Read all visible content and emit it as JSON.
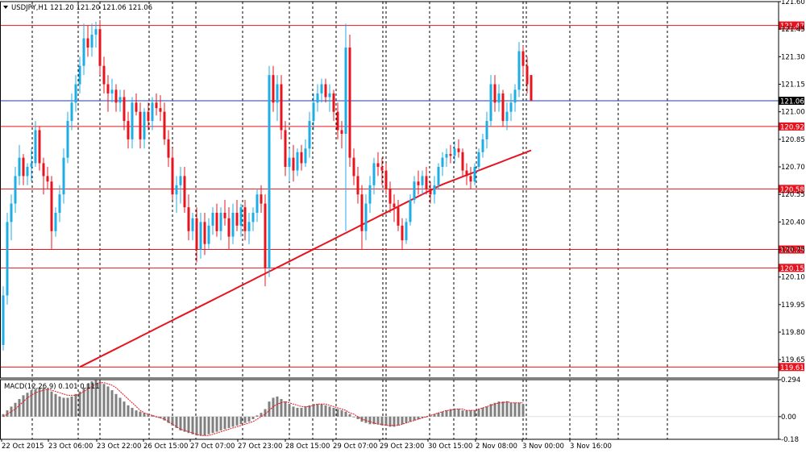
{
  "chart_data": [
    {
      "type": "candlestick",
      "title": "USDJPY,H1  121.20 121.20 121.06 121.06",
      "menu_icon": "triangle-down-icon",
      "ylim": [
        119.55,
        121.6
      ],
      "y_ticks": [
        "121.60",
        "121.45",
        "121.30",
        "121.15",
        "121.00",
        "120.85",
        "120.70",
        "120.55",
        "120.40",
        "120.25",
        "120.10",
        "119.95",
        "119.80",
        "119.65"
      ],
      "x_ticks": [
        "22 Oct 2015",
        "23 Oct 06:00",
        "23 Oct 22:00",
        "26 Oct 15:00",
        "27 Oct 07:00",
        "27 Oct 23:00",
        "28 Oct 15:00",
        "29 Oct 07:00",
        "29 Oct 23:00",
        "30 Oct 15:00",
        "2 Nov 08:00",
        "3 Nov 00:00",
        "3 Nov 16:00"
      ],
      "grid": "vertical dashed",
      "colors": {
        "bull": "#1eaee6",
        "bear": "#e6141e",
        "ma": "#e6141e",
        "hline": "#e6141e",
        "current": "#1f3fa0",
        "grid": "#000000"
      },
      "price_labels": [
        {
          "value": 121.47,
          "text": "121.47",
          "kind": "level"
        },
        {
          "value": 121.06,
          "text": "121.06",
          "kind": "current"
        },
        {
          "value": 120.92,
          "text": "120.92",
          "kind": "level"
        },
        {
          "value": 120.58,
          "text": "120.58",
          "kind": "level"
        },
        {
          "value": 120.25,
          "text": "120.25",
          "kind": "level"
        },
        {
          "value": 120.15,
          "text": "120.15",
          "kind": "level"
        },
        {
          "value": 119.61,
          "text": "119.61",
          "kind": "level"
        }
      ],
      "moving_average": {
        "start": 119.61,
        "end": 120.79,
        "shape": "rising, steady then flattening"
      },
      "candles": [
        [
          119.73,
          120.05,
          119.7,
          120.0
        ],
        [
          120.0,
          120.45,
          119.95,
          120.4
        ],
        [
          120.4,
          120.55,
          120.3,
          120.5
        ],
        [
          120.5,
          120.7,
          120.45,
          120.65
        ],
        [
          120.65,
          120.82,
          120.6,
          120.75
        ],
        [
          120.75,
          120.77,
          120.6,
          120.65
        ],
        [
          120.65,
          120.72,
          120.6,
          120.7
        ],
        [
          120.7,
          120.8,
          120.62,
          120.72
        ],
        [
          120.72,
          120.95,
          120.7,
          120.9
        ],
        [
          120.9,
          120.92,
          120.68,
          120.72
        ],
        [
          120.72,
          120.75,
          120.55,
          120.65
        ],
        [
          120.65,
          120.7,
          120.58,
          120.62
        ],
        [
          120.62,
          120.65,
          120.25,
          120.35
        ],
        [
          120.35,
          120.48,
          120.32,
          120.45
        ],
        [
          120.45,
          120.6,
          120.4,
          120.55
        ],
        [
          120.55,
          120.8,
          120.5,
          120.75
        ],
        [
          120.75,
          121.0,
          120.72,
          120.95
        ],
        [
          120.95,
          121.1,
          120.9,
          121.05
        ],
        [
          121.05,
          121.2,
          121.0,
          121.15
        ],
        [
          121.15,
          121.3,
          121.1,
          121.25
        ],
        [
          121.25,
          121.48,
          121.2,
          121.4
        ],
        [
          121.4,
          121.47,
          121.3,
          121.35
        ],
        [
          121.35,
          121.48,
          121.3,
          121.42
        ],
        [
          121.42,
          121.49,
          121.35,
          121.45
        ],
        [
          121.45,
          121.5,
          121.2,
          121.25
        ],
        [
          121.25,
          121.3,
          121.1,
          121.15
        ],
        [
          121.15,
          121.2,
          121.0,
          121.1
        ],
        [
          121.1,
          121.18,
          121.05,
          121.12
        ],
        [
          121.12,
          121.15,
          121.0,
          121.05
        ],
        [
          121.05,
          121.12,
          121.0,
          121.08
        ],
        [
          121.08,
          121.12,
          120.9,
          120.95
        ],
        [
          120.95,
          121.0,
          120.8,
          120.85
        ],
        [
          120.85,
          121.08,
          120.8,
          121.05
        ],
        [
          121.05,
          121.1,
          120.98,
          121.0
        ],
        [
          121.0,
          121.05,
          120.8,
          120.85
        ],
        [
          120.85,
          121.02,
          120.8,
          121.0
        ],
        [
          121.0,
          121.05,
          120.9,
          120.95
        ],
        [
          120.95,
          121.08,
          120.9,
          121.05
        ],
        [
          121.05,
          121.1,
          120.98,
          121.02
        ],
        [
          121.02,
          121.09,
          120.95,
          121.0
        ],
        [
          121.0,
          121.05,
          120.82,
          120.85
        ],
        [
          120.85,
          120.9,
          120.7,
          120.75
        ],
        [
          120.75,
          120.8,
          120.52,
          120.55
        ],
        [
          120.55,
          120.65,
          120.45,
          120.6
        ],
        [
          120.6,
          120.7,
          120.5,
          120.65
        ],
        [
          120.65,
          120.7,
          120.45,
          120.48
        ],
        [
          120.48,
          120.55,
          120.3,
          120.35
        ],
        [
          120.35,
          120.45,
          120.3,
          120.42
        ],
        [
          120.42,
          120.48,
          120.18,
          120.25
        ],
        [
          120.25,
          120.45,
          120.2,
          120.4
        ],
        [
          120.4,
          120.45,
          120.22,
          120.28
        ],
        [
          120.28,
          120.42,
          120.25,
          120.38
        ],
        [
          120.38,
          120.48,
          120.33,
          120.45
        ],
        [
          120.45,
          120.5,
          120.32,
          120.35
        ],
        [
          120.35,
          120.48,
          120.3,
          120.45
        ],
        [
          120.45,
          120.52,
          120.38,
          120.42
        ],
        [
          120.42,
          120.48,
          120.25,
          120.32
        ],
        [
          120.32,
          120.5,
          120.28,
          120.45
        ],
        [
          120.45,
          120.52,
          120.35,
          120.38
        ],
        [
          120.38,
          120.5,
          120.32,
          120.48
        ],
        [
          120.48,
          120.52,
          120.3,
          120.35
        ],
        [
          120.35,
          120.45,
          120.28,
          120.4
        ],
        [
          120.4,
          120.48,
          120.35,
          120.45
        ],
        [
          120.45,
          120.58,
          120.4,
          120.55
        ],
        [
          120.55,
          120.6,
          120.45,
          120.5
        ],
        [
          120.5,
          120.55,
          120.05,
          120.15
        ],
        [
          120.15,
          121.25,
          120.1,
          121.2
        ],
        [
          121.2,
          121.25,
          121.0,
          121.05
        ],
        [
          121.05,
          121.2,
          120.95,
          121.15
        ],
        [
          121.15,
          121.2,
          120.85,
          120.9
        ],
        [
          120.9,
          120.95,
          120.65,
          120.7
        ],
        [
          120.7,
          120.8,
          120.62,
          120.75
        ],
        [
          120.75,
          120.82,
          120.62,
          120.68
        ],
        [
          120.68,
          120.8,
          120.65,
          120.78
        ],
        [
          120.78,
          120.82,
          120.68,
          120.72
        ],
        [
          120.72,
          120.85,
          120.7,
          120.8
        ],
        [
          120.8,
          121.0,
          120.75,
          120.95
        ],
        [
          120.95,
          121.1,
          120.9,
          121.05
        ],
        [
          121.05,
          121.15,
          121.0,
          121.1
        ],
        [
          121.1,
          121.18,
          121.05,
          121.15
        ],
        [
          121.15,
          121.18,
          121.05,
          121.08
        ],
        [
          121.08,
          121.15,
          121.0,
          121.1
        ],
        [
          121.1,
          121.12,
          120.95,
          121.0
        ],
        [
          121.0,
          121.05,
          120.85,
          120.9
        ],
        [
          120.9,
          120.95,
          120.8,
          120.88
        ],
        [
          120.88,
          121.48,
          120.35,
          121.35
        ],
        [
          121.35,
          121.42,
          120.7,
          120.75
        ],
        [
          120.75,
          120.8,
          120.6,
          120.65
        ],
        [
          120.65,
          120.7,
          120.5,
          120.55
        ],
        [
          120.55,
          120.6,
          120.25,
          120.35
        ],
        [
          120.35,
          120.55,
          120.3,
          120.5
        ],
        [
          120.5,
          120.65,
          120.45,
          120.6
        ],
        [
          120.6,
          120.75,
          120.55,
          120.72
        ],
        [
          120.72,
          120.78,
          120.65,
          120.7
        ],
        [
          120.7,
          120.75,
          120.6,
          120.68
        ],
        [
          120.68,
          120.72,
          120.55,
          120.58
        ],
        [
          120.58,
          120.62,
          120.45,
          120.5
        ],
        [
          120.5,
          120.55,
          120.4,
          120.48
        ],
        [
          120.48,
          120.52,
          120.35,
          120.38
        ],
        [
          120.38,
          120.42,
          120.25,
          120.3
        ],
        [
          120.3,
          120.42,
          120.28,
          120.4
        ],
        [
          120.4,
          120.55,
          120.38,
          120.52
        ],
        [
          120.52,
          120.65,
          120.5,
          120.62
        ],
        [
          120.62,
          120.68,
          120.55,
          120.6
        ],
        [
          120.6,
          120.68,
          120.55,
          120.65
        ],
        [
          120.65,
          120.7,
          120.55,
          120.58
        ],
        [
          120.58,
          120.62,
          120.5,
          120.55
        ],
        [
          120.55,
          120.65,
          120.5,
          120.6
        ],
        [
          120.6,
          120.72,
          120.58,
          120.7
        ],
        [
          120.7,
          120.78,
          120.65,
          120.75
        ],
        [
          120.75,
          120.8,
          120.7,
          120.77
        ],
        [
          120.77,
          120.82,
          120.72,
          120.76
        ],
        [
          120.76,
          120.84,
          120.72,
          120.8
        ],
        [
          120.8,
          120.85,
          120.75,
          120.78
        ],
        [
          120.78,
          120.8,
          120.65,
          120.68
        ],
        [
          120.68,
          120.72,
          120.6,
          120.65
        ],
        [
          120.65,
          120.7,
          120.58,
          120.62
        ],
        [
          120.62,
          120.72,
          120.6,
          120.7
        ],
        [
          120.7,
          120.8,
          120.68,
          120.78
        ],
        [
          120.78,
          120.88,
          120.75,
          120.85
        ],
        [
          120.85,
          121.0,
          120.8,
          120.95
        ],
        [
          120.95,
          121.2,
          120.92,
          121.15
        ],
        [
          121.15,
          121.2,
          121.0,
          121.05
        ],
        [
          121.05,
          121.15,
          121.0,
          121.1
        ],
        [
          121.1,
          121.12,
          120.92,
          120.95
        ],
        [
          120.95,
          121.05,
          120.9,
          121.0
        ],
        [
          121.0,
          121.1,
          120.95,
          121.05
        ],
        [
          121.05,
          121.15,
          121.0,
          121.12
        ],
        [
          121.12,
          121.38,
          121.08,
          121.33
        ],
        [
          121.33,
          121.36,
          121.2,
          121.25
        ],
        [
          121.25,
          121.3,
          121.1,
          121.15
        ],
        [
          121.2,
          121.2,
          121.06,
          121.06
        ]
      ]
    },
    {
      "type": "bar",
      "title": "MACD(12,26,9) 0.101 0.111",
      "ylim": [
        -0.18,
        0.294
      ],
      "y_ticks": [
        "0.294",
        "0.00",
        "-0.18"
      ],
      "series": [
        {
          "kind": "histogram",
          "values": [
            0.02,
            0.05,
            0.08,
            0.11,
            0.14,
            0.17,
            0.19,
            0.21,
            0.22,
            0.23,
            0.23,
            0.22,
            0.2,
            0.18,
            0.16,
            0.15,
            0.15,
            0.16,
            0.18,
            0.2,
            0.23,
            0.26,
            0.28,
            0.29,
            0.28,
            0.26,
            0.24,
            0.21,
            0.18,
            0.15,
            0.12,
            0.09,
            0.07,
            0.05,
            0.04,
            0.03,
            0.02,
            0.01,
            0.0,
            -0.01,
            -0.03,
            -0.05,
            -0.07,
            -0.09,
            -0.11,
            -0.12,
            -0.13,
            -0.14,
            -0.15,
            -0.15,
            -0.15,
            -0.14,
            -0.13,
            -0.12,
            -0.11,
            -0.1,
            -0.09,
            -0.08,
            -0.07,
            -0.06,
            -0.05,
            -0.04,
            -0.02,
            0.01,
            0.03,
            0.06,
            0.12,
            0.15,
            0.16,
            0.14,
            0.12,
            0.1,
            0.08,
            0.07,
            0.07,
            0.08,
            0.09,
            0.1,
            0.1,
            0.1,
            0.09,
            0.08,
            0.07,
            0.06,
            0.05,
            0.04,
            0.02,
            0.0,
            -0.02,
            -0.04,
            -0.05,
            -0.06,
            -0.06,
            -0.06,
            -0.07,
            -0.07,
            -0.08,
            -0.08,
            -0.07,
            -0.06,
            -0.05,
            -0.04,
            -0.03,
            -0.02,
            -0.01,
            0.0,
            0.01,
            0.02,
            0.03,
            0.04,
            0.05,
            0.06,
            0.06,
            0.06,
            0.05,
            0.05,
            0.05,
            0.05,
            0.06,
            0.07,
            0.08,
            0.1,
            0.11,
            0.12,
            0.12,
            0.12,
            0.11,
            0.11,
            0.11,
            0.1
          ]
        },
        {
          "kind": "signal",
          "values": [
            0.0,
            0.02,
            0.04,
            0.06,
            0.09,
            0.12,
            0.15,
            0.17,
            0.19,
            0.2,
            0.21,
            0.22,
            0.21,
            0.2,
            0.19,
            0.18,
            0.17,
            0.17,
            0.17,
            0.18,
            0.2,
            0.22,
            0.24,
            0.26,
            0.27,
            0.27,
            0.26,
            0.25,
            0.23,
            0.2,
            0.17,
            0.14,
            0.11,
            0.08,
            0.05,
            0.03,
            0.02,
            0.01,
            0.0,
            -0.01,
            -0.02,
            -0.04,
            -0.06,
            -0.08,
            -0.1,
            -0.11,
            -0.12,
            -0.13,
            -0.14,
            -0.15,
            -0.15,
            -0.15,
            -0.14,
            -0.13,
            -0.12,
            -0.11,
            -0.1,
            -0.09,
            -0.08,
            -0.07,
            -0.06,
            -0.05,
            -0.04,
            -0.02,
            0.0,
            0.02,
            0.05,
            0.08,
            0.1,
            0.11,
            0.12,
            0.11,
            0.1,
            0.09,
            0.08,
            0.08,
            0.08,
            0.09,
            0.1,
            0.1,
            0.1,
            0.09,
            0.08,
            0.07,
            0.06,
            0.05,
            0.03,
            0.02,
            0.0,
            -0.02,
            -0.03,
            -0.04,
            -0.05,
            -0.06,
            -0.06,
            -0.07,
            -0.07,
            -0.07,
            -0.07,
            -0.06,
            -0.05,
            -0.04,
            -0.03,
            -0.02,
            -0.01,
            0.0,
            0.01,
            0.02,
            0.03,
            0.04,
            0.05,
            0.05,
            0.06,
            0.06,
            0.06,
            0.05,
            0.05,
            0.05,
            0.06,
            0.07,
            0.08,
            0.09,
            0.1,
            0.11,
            0.11,
            0.12,
            0.11,
            0.11,
            0.11,
            0.11
          ]
        }
      ]
    }
  ]
}
